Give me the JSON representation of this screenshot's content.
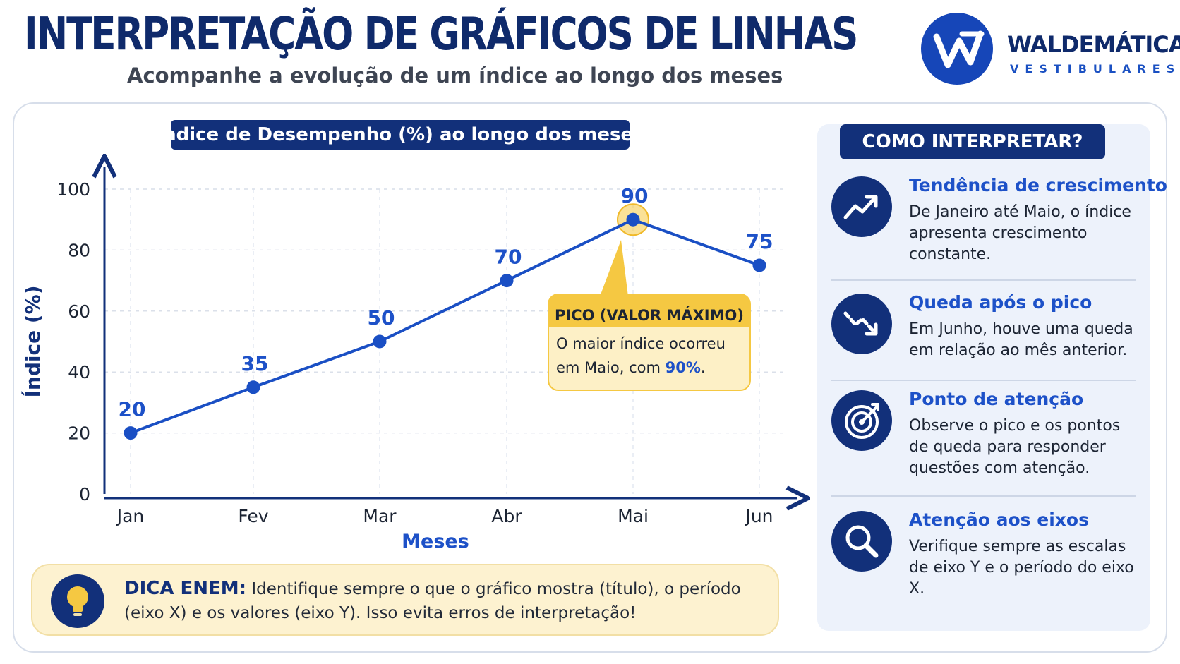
{
  "header": {
    "title": "INTERPRETAÇÃO DE GRÁFICOS DE LINHAS",
    "subtitle": "Acompanhe a evolução de um índice ao longo dos meses"
  },
  "logo": {
    "name": "WALDEMÁTICA",
    "tagline": "VESTIBULARES"
  },
  "chart_data": {
    "type": "line",
    "title": "Índice de Desempenho (%) ao longo dos meses",
    "xlabel": "Meses",
    "ylabel": "Índice (%)",
    "categories": [
      "Jan",
      "Fev",
      "Mar",
      "Abr",
      "Mai",
      "Jun"
    ],
    "values": [
      20,
      35,
      50,
      70,
      90,
      75
    ],
    "data_labels": [
      "20",
      "35",
      "50",
      "70",
      "90",
      "75"
    ],
    "ylim": [
      0,
      100
    ],
    "yticks": [
      0,
      20,
      40,
      60,
      80,
      100
    ],
    "grid": true,
    "line_color": "#1a4fc4",
    "highlight": {
      "category": "Mai",
      "title": "PICO (VALOR MÁXIMO)",
      "text": "O maior índice ocorreu em Maio, com",
      "value_text": "90%",
      "color": "#f5c842"
    }
  },
  "tip": {
    "label": "DICA ENEM:",
    "text": "Identifique sempre o que o gráfico mostra (título), o período (eixo X) e os valores (eixo Y). Isso evita erros de interpretação!"
  },
  "sidebar": {
    "title": "COMO INTERPRETAR?",
    "items": [
      {
        "icon": "trend-up-icon",
        "title": "Tendência de crescimento",
        "text": "De Janeiro até Maio, o índice apresenta crescimento constante."
      },
      {
        "icon": "trend-down-icon",
        "title": "Queda após o pico",
        "text": "Em Junho, houve uma queda em relação ao mês anterior."
      },
      {
        "icon": "target-icon",
        "title": "Ponto de atenção",
        "text": "Observe o pico e os pontos de queda para responder questões com atenção."
      },
      {
        "icon": "magnifier-icon",
        "title": "Atenção aos eixos",
        "text": "Verifique sempre as escalas de eixo Y e o período do eixo X."
      }
    ]
  },
  "colors": {
    "navy": "#12307a",
    "accent_blue": "#1d51c8",
    "highlight_yellow": "#f5c842",
    "callout_bg": "#fdf2d0"
  }
}
